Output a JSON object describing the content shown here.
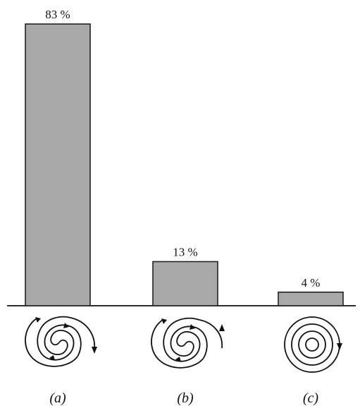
{
  "chart_data": {
    "type": "bar",
    "categories": [
      "(a)",
      "(b)",
      "(c)"
    ],
    "values": [
      83,
      13,
      4
    ],
    "value_labels": [
      "83 %",
      "13 %",
      "4 %"
    ],
    "unit": "%",
    "title": "",
    "xlabel": "",
    "ylabel": "",
    "ylim": [
      0,
      83
    ],
    "grid": false,
    "legend": "none",
    "bar_color": "#a9a9a9",
    "category_icons": [
      "spiral-open-two-arms-icon",
      "spiral-open-two-arms-icon",
      "spiral-closed-concentric-icon"
    ]
  }
}
